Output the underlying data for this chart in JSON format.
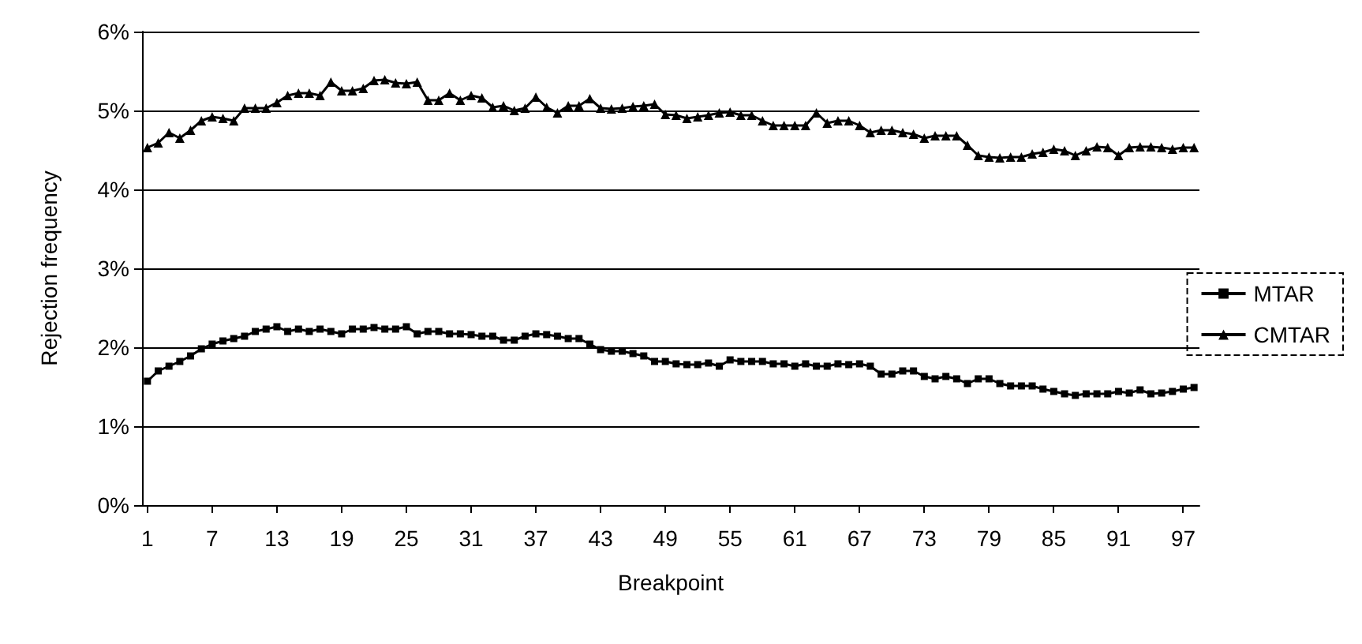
{
  "chart_data": {
    "type": "line",
    "xlabel": "Breakpoint",
    "ylabel": "Rejection frequency",
    "categories": [
      "1",
      null,
      null,
      null,
      null,
      null,
      "7",
      null,
      null,
      null,
      null,
      null,
      "13",
      null,
      null,
      null,
      null,
      null,
      "19",
      null,
      null,
      null,
      null,
      null,
      "25",
      null,
      null,
      null,
      null,
      null,
      "31",
      null,
      null,
      null,
      null,
      null,
      "37",
      null,
      null,
      null,
      null,
      null,
      "43",
      null,
      null,
      null,
      null,
      null,
      "49",
      null,
      null,
      null,
      null,
      null,
      "55",
      null,
      null,
      null,
      null,
      null,
      "61",
      null,
      null,
      null,
      null,
      null,
      "67",
      null,
      null,
      null,
      null,
      null,
      "73",
      null,
      null,
      null,
      null,
      null,
      "79",
      null,
      null,
      null,
      null,
      null,
      "85",
      null,
      null,
      null,
      null,
      null,
      "91",
      null,
      null,
      null,
      null,
      null,
      "97",
      null
    ],
    "series": [
      {
        "name": "MTAR",
        "color": "#000000",
        "marker": "square",
        "values": [
          1.57,
          1.7,
          1.76,
          1.82,
          1.89,
          1.98,
          2.04,
          2.08,
          2.11,
          2.14,
          2.2,
          2.23,
          2.26,
          2.2,
          2.23,
          2.2,
          2.23,
          2.2,
          2.17,
          2.23,
          2.23,
          2.25,
          2.23,
          2.23,
          2.26,
          2.17,
          2.2,
          2.2,
          2.17,
          2.17,
          2.16,
          2.14,
          2.14,
          2.09,
          2.09,
          2.14,
          2.17,
          2.16,
          2.14,
          2.11,
          2.11,
          2.04,
          1.97,
          1.95,
          1.95,
          1.92,
          1.89,
          1.82,
          1.82,
          1.79,
          1.78,
          1.78,
          1.8,
          1.76,
          1.84,
          1.82,
          1.82,
          1.82,
          1.79,
          1.79,
          1.76,
          1.79,
          1.76,
          1.76,
          1.79,
          1.78,
          1.79,
          1.76,
          1.66,
          1.66,
          1.7,
          1.7,
          1.63,
          1.6,
          1.63,
          1.6,
          1.54,
          1.6,
          1.6,
          1.54,
          1.51,
          1.51,
          1.51,
          1.47,
          1.44,
          1.41,
          1.39,
          1.41,
          1.41,
          1.41,
          1.44,
          1.42,
          1.46,
          1.41,
          1.42,
          1.44,
          1.47,
          1.49
        ]
      },
      {
        "name": "CMTAR",
        "color": "#000000",
        "marker": "triangle",
        "values": [
          4.53,
          4.59,
          4.72,
          4.65,
          4.75,
          4.87,
          4.92,
          4.9,
          4.87,
          5.03,
          5.03,
          5.03,
          5.1,
          5.19,
          5.22,
          5.22,
          5.19,
          5.36,
          5.25,
          5.25,
          5.28,
          5.38,
          5.39,
          5.35,
          5.34,
          5.36,
          5.13,
          5.13,
          5.22,
          5.13,
          5.19,
          5.16,
          5.04,
          5.06,
          5.0,
          5.03,
          5.17,
          5.04,
          4.97,
          5.06,
          5.06,
          5.15,
          5.03,
          5.02,
          5.03,
          5.05,
          5.06,
          5.08,
          4.95,
          4.94,
          4.9,
          4.92,
          4.94,
          4.97,
          4.98,
          4.94,
          4.94,
          4.87,
          4.81,
          4.81,
          4.81,
          4.81,
          4.97,
          4.84,
          4.87,
          4.87,
          4.81,
          4.72,
          4.75,
          4.75,
          4.72,
          4.7,
          4.65,
          4.68,
          4.68,
          4.68,
          4.56,
          4.43,
          4.41,
          4.4,
          4.41,
          4.41,
          4.45,
          4.47,
          4.51,
          4.49,
          4.43,
          4.49,
          4.54,
          4.53,
          4.43,
          4.53,
          4.54,
          4.54,
          4.53,
          4.51,
          4.53,
          4.53
        ]
      }
    ],
    "ylim": [
      0,
      6
    ],
    "yticks": [
      {
        "value": 0,
        "label": "0%"
      },
      {
        "value": 1,
        "label": "1%"
      },
      {
        "value": 2,
        "label": "2%"
      },
      {
        "value": 3,
        "label": "3%"
      },
      {
        "value": 4,
        "label": "4%"
      },
      {
        "value": 5,
        "label": "5%"
      },
      {
        "value": 6,
        "label": "6%"
      }
    ],
    "grid": "y",
    "legend": "right",
    "line_style": "solid"
  }
}
